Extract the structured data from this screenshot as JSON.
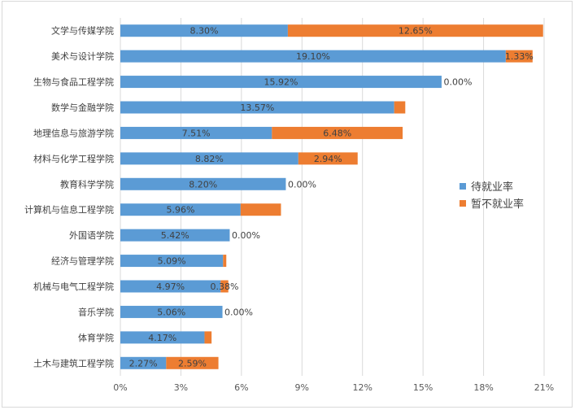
{
  "chart_data": {
    "type": "bar",
    "orientation": "horizontal",
    "stacked": true,
    "title": "",
    "xlabel": "",
    "ylabel": "",
    "xlim": [
      0,
      0.21
    ],
    "x_ticks": [
      "0%",
      "3%",
      "6%",
      "9%",
      "12%",
      "15%",
      "18%",
      "21%"
    ],
    "grid": true,
    "legend_position": "right",
    "categories": [
      "文学与传媒学院",
      "美术与设计学院",
      "生物与食品工程学院",
      "数学与金融学院",
      "地理信息与旅游学院",
      "材料与化学工程学院",
      "教育科学学院",
      "计算机与信息工程学院",
      "外国语学院",
      "经济与管理学院",
      "机械与电气工程学院",
      "音乐学院",
      "体育学院",
      "土木与建筑工程学院"
    ],
    "series": [
      {
        "name": "待就业率",
        "color": "#5b9bd5",
        "values": [
          0.083,
          0.191,
          0.1592,
          0.1357,
          0.0751,
          0.0882,
          0.082,
          0.0596,
          0.0542,
          0.0509,
          0.0497,
          0.0506,
          0.0417,
          0.0227
        ],
        "labels": [
          "8.30%",
          "19.10%",
          "15.92%",
          "13.57%",
          "7.51%",
          "8.82%",
          "8.20%",
          "5.96%",
          "5.42%",
          "5.09%",
          "4.97%",
          "5.06%",
          "4.17%",
          "2.27%"
        ]
      },
      {
        "name": "暂不就业率",
        "color": "#ed7d31",
        "values": [
          0.1265,
          0.0133,
          0.0,
          0.0055,
          0.0648,
          0.0294,
          0.0,
          0.02,
          0.0,
          0.0016,
          0.0038,
          0.0,
          0.0035,
          0.0259
        ],
        "labels": [
          "12.65%",
          "1.33%",
          "0.00%",
          "",
          "6.48%",
          "2.94%",
          "0.00%",
          "",
          "0.00%",
          "",
          "0.38%",
          "0.00%",
          "",
          "2.59%"
        ]
      }
    ]
  }
}
